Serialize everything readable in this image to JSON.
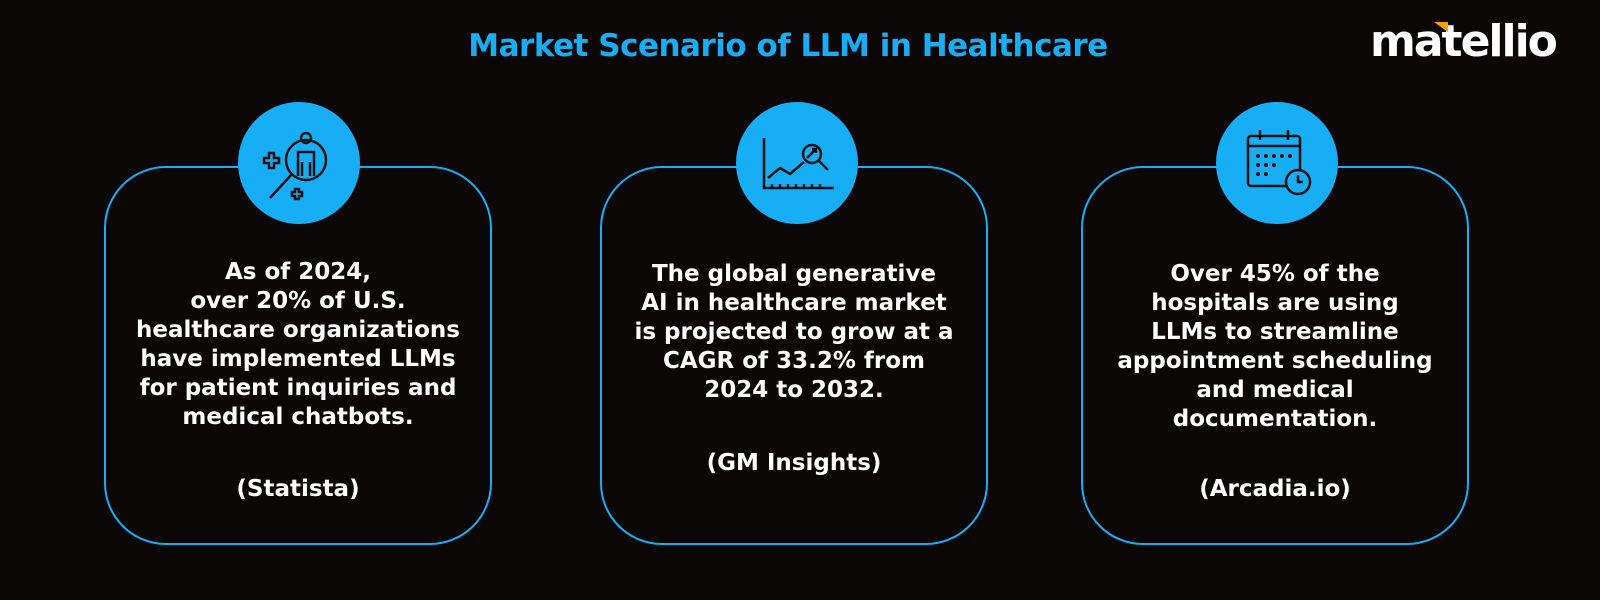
{
  "title": "Market Scenario of LLM in Healthcare",
  "logo": {
    "text": "matellio",
    "accent_color": "#f5a300"
  },
  "colors": {
    "accent": "#18aef5",
    "background": "#0b0707"
  },
  "cards": [
    {
      "icon": "patient-search-icon",
      "text": "As of 2024,\nover 20% of U.S.\nhealthcare organizations\nhave implemented LLMs\nfor patient inquiries and\nmedical chatbots.",
      "source": "(Statista)"
    },
    {
      "icon": "growth-chart-icon",
      "text": "The global generative\nAI in healthcare market\nis projected to grow at a\nCAGR of 33.2% from\n2024 to 2032.",
      "source": "(GM Insights)"
    },
    {
      "icon": "calendar-clock-icon",
      "text": "Over 45% of the\nhospitals are using\nLLMs to streamline\nappointment scheduling\nand medical\ndocumentation.",
      "source": "(Arcadia.io)"
    }
  ]
}
